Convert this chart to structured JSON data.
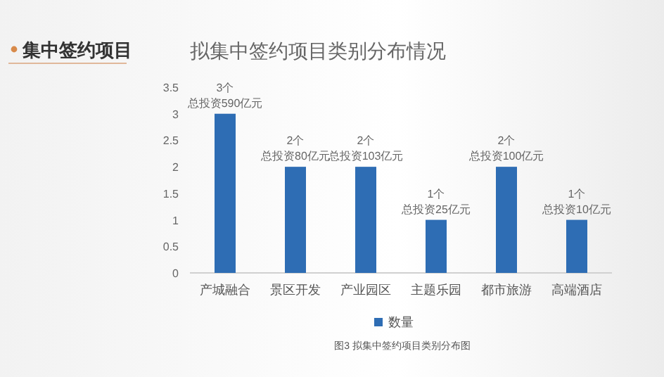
{
  "chart_data": {
    "type": "bar",
    "title": "拟集中签约项目类别分布情况",
    "annotations": [
      "集中签约项目",
      "图3 拟集中签约项目类别分布图"
    ],
    "categories": [
      "产城融合",
      "景区开发",
      "产业园区",
      "主题乐园",
      "都市旅游",
      "高端酒店"
    ],
    "series": [
      {
        "name": "数量",
        "color": "#2e6db4",
        "values": [
          3,
          2,
          2,
          1,
          2,
          1
        ],
        "value_labels": [
          "3个总投资590亿元",
          "2个总投资80亿元",
          "2个总投资103亿元",
          "1个总投资25亿元",
          "2个总投资100亿元",
          "1个总投资10亿元"
        ]
      }
    ],
    "ylim": [
      0,
      3.5
    ],
    "yticks": [
      0,
      0.5,
      1,
      1.5,
      2,
      2.5,
      3,
      3.5
    ],
    "legend": "bottom"
  }
}
